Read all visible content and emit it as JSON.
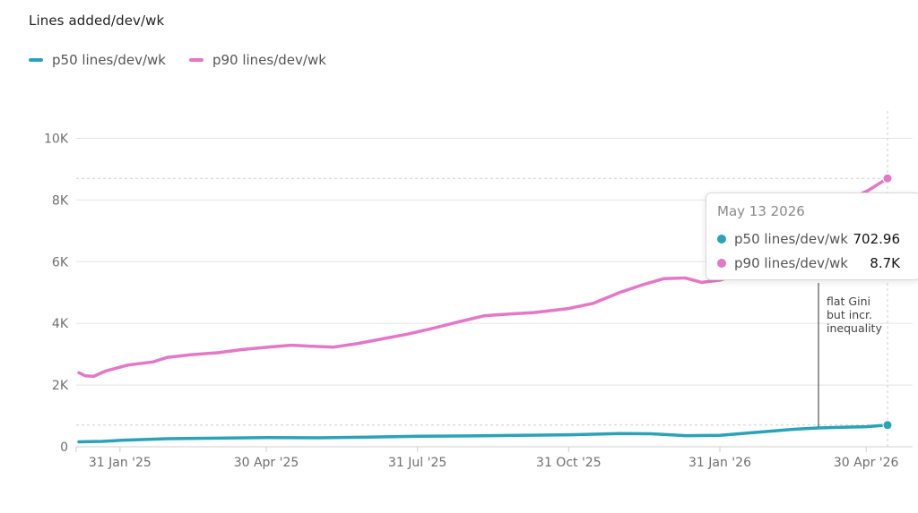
{
  "chart_data": {
    "type": "line",
    "title": "Lines added/dev/wk",
    "x_start": "2025-01-06",
    "x_end": "2026-05-13",
    "xlim": [
      "2025-01-06",
      "2026-05-13"
    ],
    "ylim": [
      0,
      11000
    ],
    "y_ticks": [
      0,
      2000,
      4000,
      6000,
      8000,
      10000
    ],
    "y_tick_labels": [
      "0",
      "2K",
      "4K",
      "6K",
      "8K",
      "10K"
    ],
    "x_ticks": [
      "2025-01-31",
      "2025-04-30",
      "2025-07-31",
      "2025-10-31",
      "2026-01-31",
      "2026-04-30"
    ],
    "x_tick_labels": [
      "31 Jan '25",
      "30 Apr '25",
      "31 Jul '25",
      "31 Oct '25",
      "31 Jan '26",
      "30 Apr '26"
    ],
    "grid": true,
    "legend_position": "top-left",
    "series": [
      {
        "name": "p50 lines/dev/wk",
        "color": "#2aa3b8",
        "points": [
          [
            "2025-01-06",
            160
          ],
          [
            "2025-01-20",
            175
          ],
          [
            "2025-02-01",
            210
          ],
          [
            "2025-03-01",
            260
          ],
          [
            "2025-04-01",
            280
          ],
          [
            "2025-05-01",
            300
          ],
          [
            "2025-06-01",
            290
          ],
          [
            "2025-07-01",
            310
          ],
          [
            "2025-08-01",
            340
          ],
          [
            "2025-09-01",
            350
          ],
          [
            "2025-10-01",
            370
          ],
          [
            "2025-11-01",
            390
          ],
          [
            "2025-12-01",
            430
          ],
          [
            "2025-12-20",
            420
          ],
          [
            "2026-01-10",
            360
          ],
          [
            "2026-01-31",
            370
          ],
          [
            "2026-02-20",
            460
          ],
          [
            "2026-03-15",
            560
          ],
          [
            "2026-04-01",
            610
          ],
          [
            "2026-04-15",
            630
          ],
          [
            "2026-04-30",
            650
          ],
          [
            "2026-05-13",
            702.96
          ]
        ]
      },
      {
        "name": "p90 lines/dev/wk",
        "color": "#e477c6",
        "points": [
          [
            "2025-01-06",
            2400
          ],
          [
            "2025-01-10",
            2300
          ],
          [
            "2025-01-15",
            2280
          ],
          [
            "2025-01-22",
            2450
          ],
          [
            "2025-02-05",
            2650
          ],
          [
            "2025-02-20",
            2750
          ],
          [
            "2025-03-01",
            2900
          ],
          [
            "2025-03-15",
            2980
          ],
          [
            "2025-04-01",
            3050
          ],
          [
            "2025-04-15",
            3150
          ],
          [
            "2025-05-01",
            3230
          ],
          [
            "2025-05-15",
            3290
          ],
          [
            "2025-05-28",
            3260
          ],
          [
            "2025-06-10",
            3230
          ],
          [
            "2025-06-25",
            3350
          ],
          [
            "2025-07-10",
            3500
          ],
          [
            "2025-07-25",
            3650
          ],
          [
            "2025-08-10",
            3850
          ],
          [
            "2025-08-25",
            4050
          ],
          [
            "2025-09-10",
            4250
          ],
          [
            "2025-09-25",
            4300
          ],
          [
            "2025-10-10",
            4350
          ],
          [
            "2025-10-31",
            4480
          ],
          [
            "2025-11-15",
            4650
          ],
          [
            "2025-12-01",
            5000
          ],
          [
            "2025-12-15",
            5250
          ],
          [
            "2025-12-28",
            5450
          ],
          [
            "2026-01-10",
            5470
          ],
          [
            "2026-01-20",
            5330
          ],
          [
            "2026-01-31",
            5400
          ],
          [
            "2026-02-10",
            5560
          ],
          [
            "2026-02-20",
            5750
          ],
          [
            "2026-03-01",
            6000
          ],
          [
            "2026-04-15",
            7900
          ],
          [
            "2026-05-01",
            8300
          ],
          [
            "2026-05-13",
            8700
          ]
        ]
      }
    ],
    "hover": {
      "date": "2026-05-13",
      "date_label": "May 13 2026",
      "values": [
        {
          "name": "p50 lines/dev/wk",
          "value": 702.96,
          "value_label": "702.96"
        },
        {
          "name": "p90 lines/dev/wk",
          "value": 8700,
          "value_label": "8.7K"
        }
      ]
    },
    "annotations": [
      {
        "date": "2026-04-01",
        "lines": [
          "flat Gini",
          "but incr.",
          "inequality"
        ]
      }
    ]
  }
}
